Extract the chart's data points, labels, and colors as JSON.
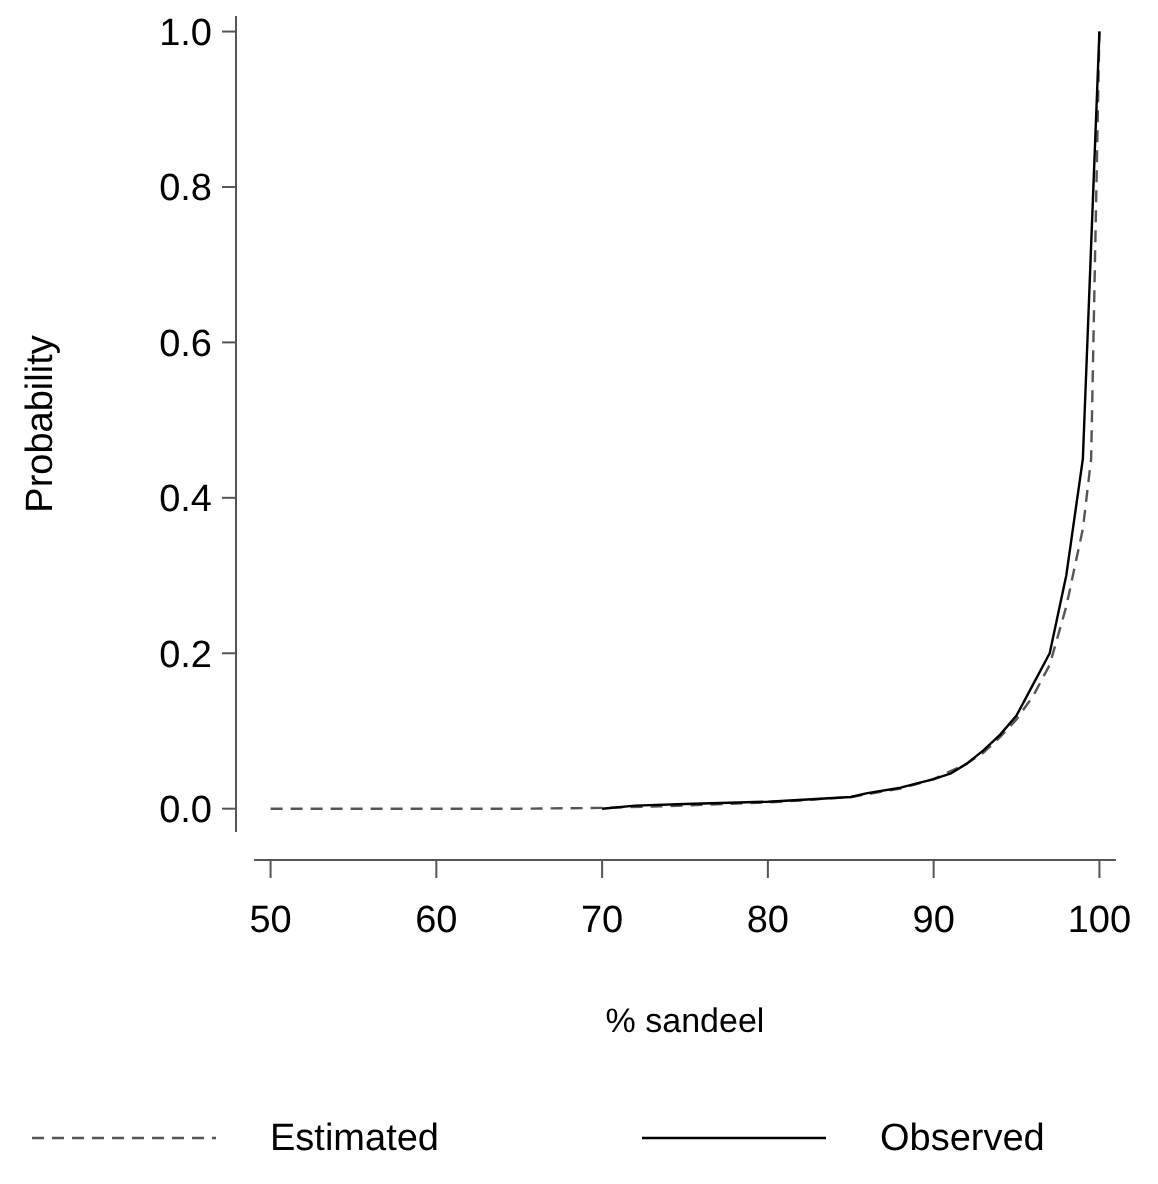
{
  "chart_data": {
    "type": "line",
    "xlabel": "% sandeel",
    "ylabel": "Probability",
    "xlim": [
      49,
      101
    ],
    "ylim": [
      -0.03,
      1.02
    ],
    "xticks": [
      50,
      60,
      70,
      80,
      90,
      100
    ],
    "yticks": [
      {
        "value": 0,
        "label": "0.0"
      },
      {
        "value": 0.2,
        "label": "0.2"
      },
      {
        "value": 0.4,
        "label": "0.4"
      },
      {
        "value": 0.6,
        "label": "0.6"
      },
      {
        "value": 0.8,
        "label": "0.8"
      },
      {
        "value": 1,
        "label": "1.0"
      }
    ],
    "legend": "bottom",
    "grid": false,
    "series": [
      {
        "name": "Estimated",
        "color": "#555555",
        "line_style": "dashed",
        "x": [
          50,
          55,
          60,
          65,
          70,
          75,
          80,
          85,
          88,
          90,
          92,
          93,
          94,
          95,
          96,
          97,
          98,
          99,
          99.5,
          100
        ],
        "values": [
          0,
          0,
          0,
          0,
          0.001,
          0.004,
          0.008,
          0.015,
          0.026,
          0.038,
          0.058,
          0.072,
          0.092,
          0.115,
          0.145,
          0.185,
          0.26,
          0.36,
          0.45,
          1.0
        ]
      },
      {
        "name": "Observed",
        "color": "#000000",
        "line_style": "solid",
        "x": [
          70,
          72,
          75,
          80,
          85,
          86,
          88,
          90,
          91,
          92,
          93,
          94,
          95,
          96,
          97,
          98,
          99,
          100
        ],
        "values": [
          0,
          0.004,
          0.006,
          0.009,
          0.015,
          0.02,
          0.027,
          0.038,
          0.045,
          0.058,
          0.075,
          0.095,
          0.12,
          0.16,
          0.2,
          0.3,
          0.45,
          1.0
        ]
      }
    ]
  }
}
